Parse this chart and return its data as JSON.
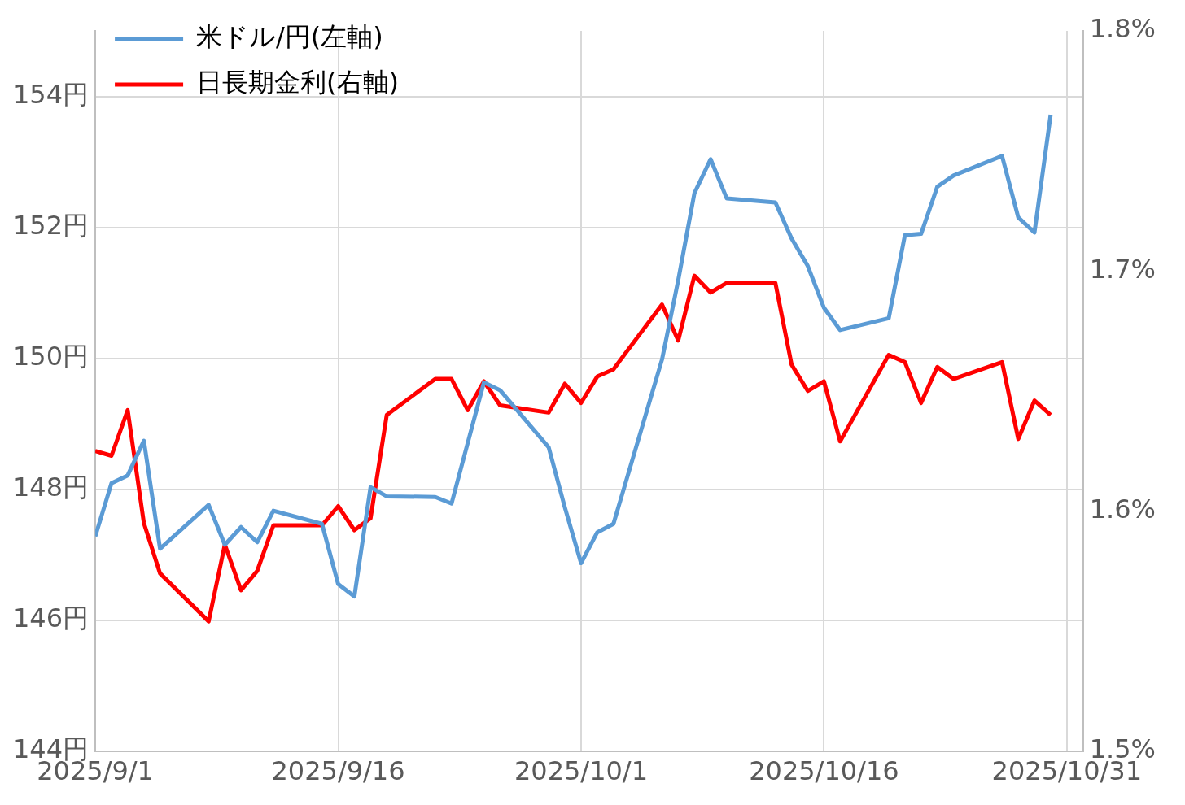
{
  "chart_data": {
    "type": "line",
    "xlim": [
      "2025-09-01",
      "2025-11-01"
    ],
    "xticks": [
      {
        "value": "2025-09-01",
        "label": "2025/9/1"
      },
      {
        "value": "2025-09-16",
        "label": "2025/9/16"
      },
      {
        "value": "2025-10-01",
        "label": "2025/10/1"
      },
      {
        "value": "2025-10-16",
        "label": "2025/10/16"
      },
      {
        "value": "2025-10-31",
        "label": "2025/10/31"
      }
    ],
    "ylim": [
      144,
      155
    ],
    "yticks": [
      {
        "value": 144,
        "label": "144円"
      },
      {
        "value": 146,
        "label": "146円"
      },
      {
        "value": 148,
        "label": "148円"
      },
      {
        "value": 150,
        "label": "150円"
      },
      {
        "value": 152,
        "label": "152円"
      },
      {
        "value": 154,
        "label": "154円"
      }
    ],
    "y2lim": [
      1.5,
      1.8
    ],
    "y2ticks": [
      {
        "value": 1.5,
        "label": "1.5%"
      },
      {
        "value": 1.6,
        "label": "1.6%"
      },
      {
        "value": 1.7,
        "label": "1.7%"
      },
      {
        "value": 1.8,
        "label": "1.8%"
      }
    ],
    "grid": true,
    "legend": "top left",
    "series": [
      {
        "name": "米ドル/円(左軸)",
        "color": "#5b9bd5",
        "x": [
          "2025-09-01",
          "2025-09-02",
          "2025-09-03",
          "2025-09-04",
          "2025-09-05",
          "2025-09-08",
          "2025-09-09",
          "2025-09-10",
          "2025-09-11",
          "2025-09-12",
          "2025-09-15",
          "2025-09-16",
          "2025-09-17",
          "2025-09-18",
          "2025-09-19",
          "2025-09-22",
          "2025-09-23",
          "2025-09-25",
          "2025-09-26",
          "2025-09-29",
          "2025-09-30",
          "2025-10-01",
          "2025-10-02",
          "2025-10-03",
          "2025-10-06",
          "2025-10-07",
          "2025-10-08",
          "2025-10-09",
          "2025-10-10",
          "2025-10-13",
          "2025-10-14",
          "2025-10-15",
          "2025-10-16",
          "2025-10-17",
          "2025-10-20",
          "2025-10-21",
          "2025-10-22",
          "2025-10-23",
          "2025-10-24",
          "2025-10-27",
          "2025-10-28",
          "2025-10-29",
          "2025-10-30"
        ],
        "values": [
          147.28,
          148.09,
          148.21,
          148.74,
          147.09,
          147.76,
          147.15,
          147.42,
          147.19,
          147.67,
          147.47,
          146.55,
          146.36,
          148.03,
          147.89,
          147.88,
          147.78,
          149.63,
          149.51,
          148.64,
          147.72,
          146.87,
          147.34,
          147.47,
          149.98,
          151.19,
          152.52,
          153.04,
          152.44,
          152.38,
          151.83,
          151.41,
          150.77,
          150.43,
          150.61,
          151.88,
          151.9,
          152.62,
          152.79,
          153.09,
          152.15,
          151.92,
          153.72
        ]
      },
      {
        "name": "日長期金利(右軸)",
        "color": "#ff0000",
        "axis": "y2",
        "x": [
          "2025-09-01",
          "2025-09-02",
          "2025-09-03",
          "2025-09-04",
          "2025-09-05",
          "2025-09-08",
          "2025-09-09",
          "2025-09-10",
          "2025-09-11",
          "2025-09-12",
          "2025-09-15",
          "2025-09-16",
          "2025-09-17",
          "2025-09-18",
          "2025-09-19",
          "2025-09-22",
          "2025-09-23",
          "2025-09-24",
          "2025-09-25",
          "2025-09-26",
          "2025-09-29",
          "2025-09-30",
          "2025-10-01",
          "2025-10-02",
          "2025-10-03",
          "2025-10-06",
          "2025-10-07",
          "2025-10-08",
          "2025-10-09",
          "2025-10-10",
          "2025-10-13",
          "2025-10-14",
          "2025-10-15",
          "2025-10-16",
          "2025-10-17",
          "2025-10-20",
          "2025-10-21",
          "2025-10-22",
          "2025-10-23",
          "2025-10-24",
          "2025-10-27",
          "2025-10-28",
          "2025-10-29",
          "2025-10-30"
        ],
        "values": [
          1.625,
          1.623,
          1.642,
          1.595,
          1.574,
          1.554,
          1.586,
          1.567,
          1.575,
          1.594,
          1.594,
          1.602,
          1.592,
          1.597,
          1.64,
          1.655,
          1.655,
          1.642,
          1.654,
          1.644,
          1.641,
          1.653,
          1.645,
          1.656,
          1.659,
          1.686,
          1.671,
          1.698,
          1.691,
          1.695,
          1.695,
          1.661,
          1.65,
          1.654,
          1.629,
          1.665,
          1.662,
          1.645,
          1.66,
          1.655,
          1.662,
          1.63,
          1.646,
          1.64
        ]
      }
    ]
  }
}
